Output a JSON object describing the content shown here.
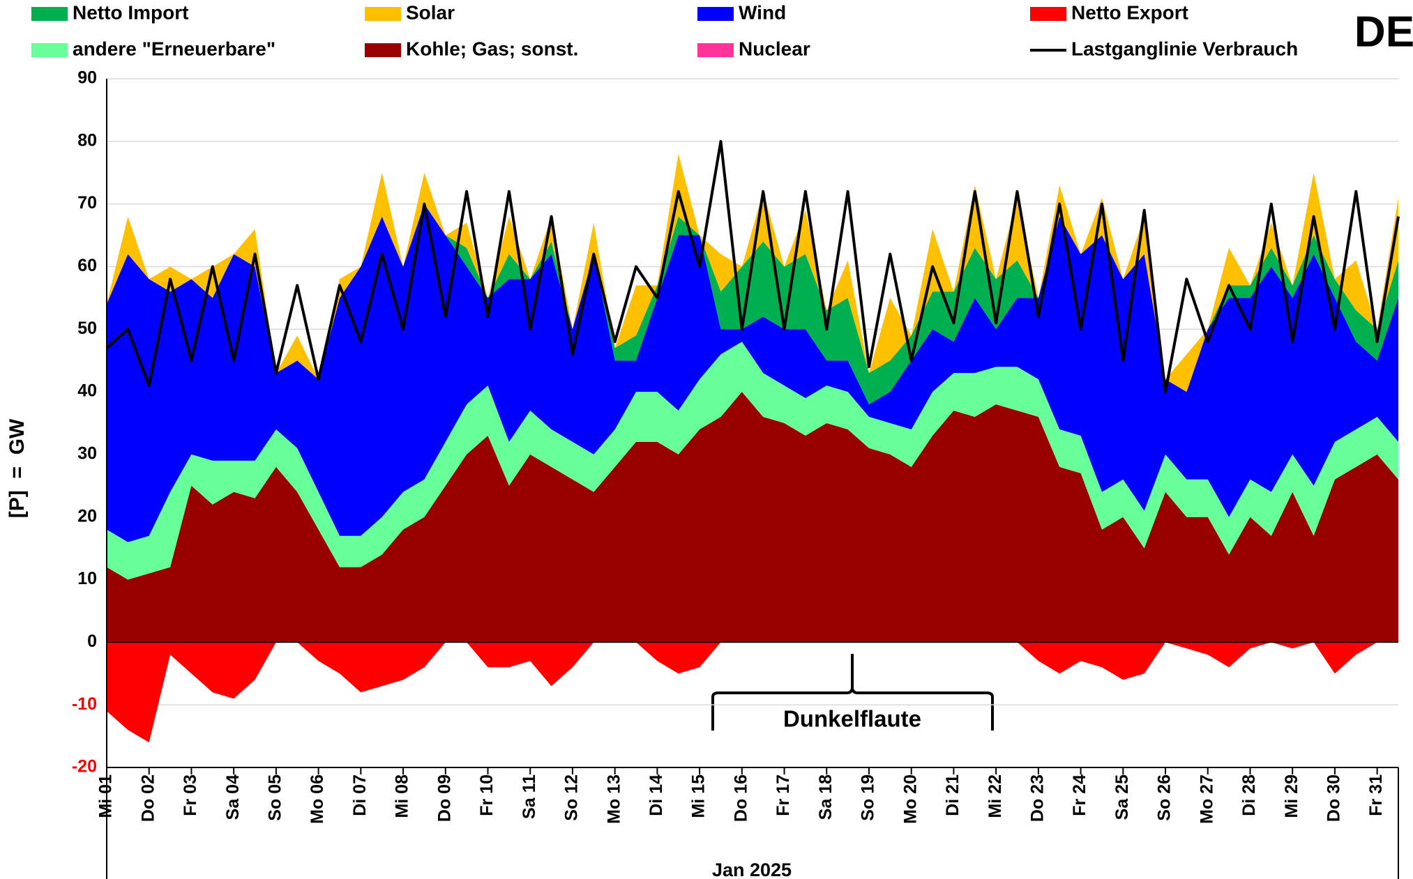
{
  "chart_data": {
    "type": "stacked_area",
    "corner_label": "DE",
    "y_axis_label": "[P]  =  GW",
    "x_axis_label": "Jan 2025",
    "annotation": "Dunkelflaute",
    "ylim": [
      -20,
      90
    ],
    "yticks": [
      -20,
      -10,
      0,
      10,
      20,
      30,
      40,
      50,
      60,
      70,
      80,
      90
    ],
    "negative_tick_color": "#ff0000",
    "grid": true,
    "xlim": [
      1,
      31.5
    ],
    "xticks": [
      {
        "value": 1,
        "label": "Mi 01"
      },
      {
        "value": 2,
        "label": "Do 02"
      },
      {
        "value": 3,
        "label": "Fr 03"
      },
      {
        "value": 4,
        "label": "Sa 04"
      },
      {
        "value": 5,
        "label": "So 05"
      },
      {
        "value": 6,
        "label": "Mo 06"
      },
      {
        "value": 7,
        "label": "Di 07"
      },
      {
        "value": 8,
        "label": "Mi 08"
      },
      {
        "value": 9,
        "label": "Do 09"
      },
      {
        "value": 10,
        "label": "Fr 10"
      },
      {
        "value": 11,
        "label": "Sa 11"
      },
      {
        "value": 12,
        "label": "So 12"
      },
      {
        "value": 13,
        "label": "Mo 13"
      },
      {
        "value": 14,
        "label": "Di 14"
      },
      {
        "value": 15,
        "label": "Mi 15"
      },
      {
        "value": 16,
        "label": "Do 16"
      },
      {
        "value": 17,
        "label": "Fr 17"
      },
      {
        "value": 18,
        "label": "Sa 18"
      },
      {
        "value": 19,
        "label": "So 19"
      },
      {
        "value": 20,
        "label": "Mo 20"
      },
      {
        "value": 21,
        "label": "Di 21"
      },
      {
        "value": 22,
        "label": "Mi 22"
      },
      {
        "value": 23,
        "label": "Do 23"
      },
      {
        "value": 24,
        "label": "Fr 24"
      },
      {
        "value": 25,
        "label": "Sa 25"
      },
      {
        "value": 26,
        "label": "So 26"
      },
      {
        "value": 27,
        "label": "Mo 27"
      },
      {
        "value": 28,
        "label": "Di 28"
      },
      {
        "value": 29,
        "label": "Mi 29"
      },
      {
        "value": 30,
        "label": "Do 30"
      },
      {
        "value": 31,
        "label": "Fr 31"
      }
    ],
    "x": [
      1,
      1.5,
      2,
      2.5,
      3,
      3.5,
      4,
      4.5,
      5,
      5.5,
      6,
      6.5,
      7,
      7.5,
      8,
      8.5,
      9,
      9.5,
      10,
      10.5,
      11,
      11.5,
      12,
      12.5,
      13,
      13.5,
      14,
      14.5,
      15,
      15.5,
      16,
      16.5,
      17,
      17.5,
      18,
      18.5,
      19,
      19.5,
      20,
      20.5,
      21,
      21.5,
      22,
      22.5,
      23,
      23.5,
      24,
      24.5,
      25,
      25.5,
      26,
      26.5,
      27,
      27.5,
      28,
      28.5,
      29,
      29.5,
      30,
      30.5,
      31,
      31.5
    ],
    "series": [
      {
        "name": "Netto Import",
        "color": "#00b050",
        "values": [
          0,
          0,
          0,
          0,
          0,
          0,
          0,
          0,
          0,
          0,
          0,
          0,
          0,
          0,
          0,
          0,
          0,
          3,
          0,
          4,
          0,
          2,
          0,
          0,
          2,
          4,
          2,
          3,
          0,
          6,
          10,
          12,
          10,
          12,
          8,
          10,
          5,
          5,
          4,
          6,
          8,
          8,
          8,
          6,
          0,
          0,
          0,
          0,
          0,
          0,
          0,
          0,
          0,
          2,
          2,
          3,
          2,
          3,
          3,
          5,
          5,
          6
        ]
      },
      {
        "name": "Solar",
        "color": "#ffc000",
        "values": [
          0,
          6,
          0,
          4,
          0,
          5,
          0,
          6,
          0,
          4,
          0,
          3,
          0,
          7,
          0,
          5,
          0,
          4,
          0,
          6,
          0,
          4,
          0,
          5,
          0,
          8,
          0,
          10,
          0,
          6,
          0,
          8,
          0,
          7,
          0,
          6,
          0,
          10,
          0,
          10,
          0,
          10,
          0,
          10,
          0,
          5,
          0,
          6,
          0,
          6,
          0,
          6,
          0,
          6,
          0,
          4,
          0,
          10,
          0,
          8,
          0,
          10
        ]
      },
      {
        "name": "Wind",
        "color": "#0000ff",
        "values": [
          36,
          46,
          41,
          32,
          28,
          26,
          33,
          31,
          9,
          14,
          18,
          38,
          43,
          48,
          36,
          44,
          33,
          22,
          14,
          26,
          21,
          28,
          18,
          32,
          11,
          5,
          15,
          28,
          23,
          4,
          2,
          9,
          9,
          11,
          4,
          5,
          2,
          5,
          11,
          10,
          5,
          12,
          6,
          11,
          13,
          34,
          29,
          41,
          32,
          41,
          12,
          14,
          24,
          35,
          29,
          36,
          25,
          37,
          23,
          14,
          9,
          23
        ]
      },
      {
        "name": "Netto Export",
        "color": "#ff0000",
        "values": [
          -11,
          -14,
          -16,
          -2,
          -5,
          -8,
          -9,
          -6,
          0,
          0,
          -3,
          -5,
          -8,
          -7,
          -6,
          -4,
          0,
          0,
          -4,
          -4,
          -3,
          -7,
          -4,
          0,
          0,
          0,
          -3,
          -5,
          -4,
          0,
          0,
          0,
          0,
          0,
          0,
          0,
          0,
          0,
          0,
          0,
          0,
          0,
          0,
          0,
          -3,
          -5,
          -3,
          -4,
          -6,
          -5,
          0,
          -1,
          -2,
          -4,
          -1,
          0,
          -1,
          0,
          -5,
          -2,
          0,
          0
        ]
      },
      {
        "name": "andere \"Erneuerbare\"",
        "color": "#66ff99",
        "values": [
          6,
          6,
          6,
          12,
          5,
          7,
          5,
          6,
          6,
          7,
          6,
          5,
          5,
          6,
          6,
          6,
          7,
          8,
          8,
          7,
          7,
          6,
          6,
          6,
          6,
          8,
          8,
          7,
          8,
          10,
          8,
          7,
          6,
          6,
          6,
          6,
          5,
          5,
          6,
          7,
          6,
          7,
          6,
          7,
          6,
          6,
          6,
          6,
          6,
          6,
          6,
          6,
          6,
          6,
          6,
          7,
          6,
          8,
          6,
          6,
          6,
          6
        ]
      },
      {
        "name": "Kohle; Gas; sonst.",
        "color": "#990000",
        "values": [
          12,
          10,
          11,
          12,
          25,
          22,
          24,
          23,
          28,
          24,
          18,
          12,
          12,
          14,
          18,
          20,
          25,
          30,
          33,
          25,
          30,
          28,
          26,
          24,
          28,
          32,
          32,
          30,
          34,
          36,
          40,
          36,
          35,
          33,
          35,
          34,
          31,
          30,
          28,
          33,
          37,
          36,
          38,
          37,
          36,
          28,
          27,
          18,
          20,
          15,
          24,
          20,
          20,
          14,
          20,
          17,
          24,
          17,
          26,
          28,
          30,
          26
        ]
      },
      {
        "name": "Nuclear",
        "color": "#ff3399",
        "values": [
          0,
          0,
          0,
          0,
          0,
          0,
          0,
          0,
          0,
          0,
          0,
          0,
          0,
          0,
          0,
          0,
          0,
          0,
          0,
          0,
          0,
          0,
          0,
          0,
          0,
          0,
          0,
          0,
          0,
          0,
          0,
          0,
          0,
          0,
          0,
          0,
          0,
          0,
          0,
          0,
          0,
          0,
          0,
          0,
          0,
          0,
          0,
          0,
          0,
          0,
          0,
          0,
          0,
          0,
          0,
          0,
          0,
          0,
          0,
          0,
          0,
          0
        ]
      },
      {
        "name": "Lastganglinie Verbrauch",
        "color": "#000000",
        "type": "line",
        "values": [
          47,
          50,
          41,
          58,
          45,
          60,
          45,
          62,
          43,
          57,
          42,
          57,
          48,
          62,
          50,
          70,
          52,
          72,
          52,
          72,
          50,
          68,
          46,
          62,
          48,
          60,
          55,
          72,
          60,
          80,
          50,
          72,
          50,
          72,
          50,
          72,
          44,
          62,
          45,
          60,
          51,
          72,
          51,
          72,
          52,
          70,
          50,
          70,
          45,
          69,
          40,
          58,
          48,
          57,
          50,
          70,
          48,
          68,
          50,
          72,
          48,
          68
        ]
      }
    ]
  }
}
